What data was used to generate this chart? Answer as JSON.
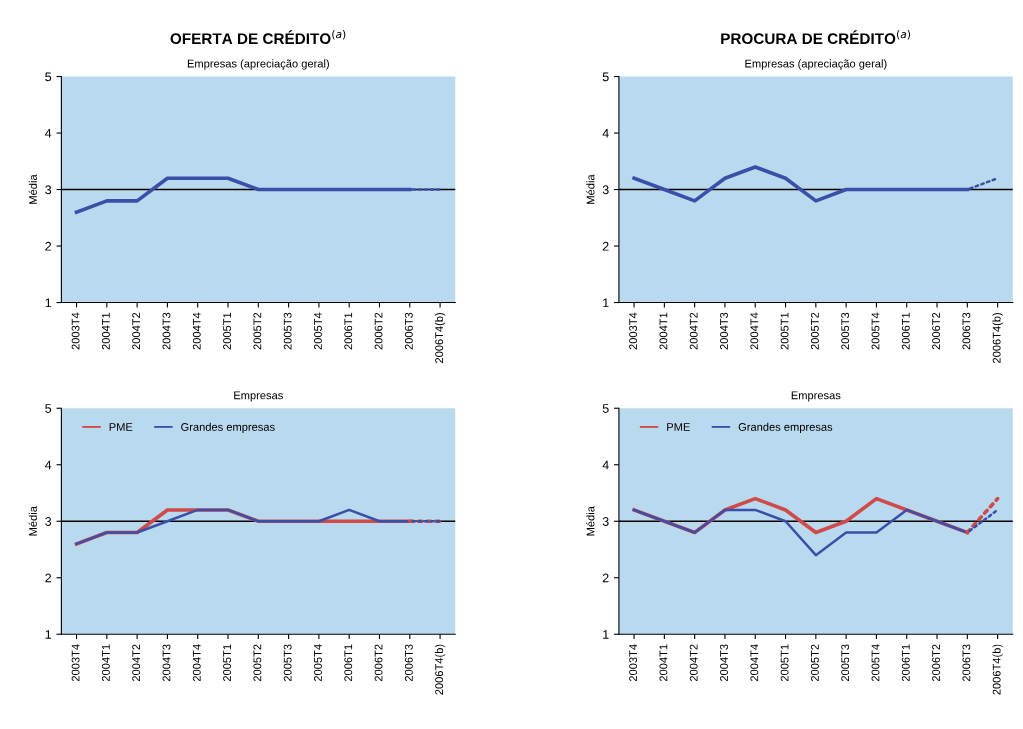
{
  "chart_data": [
    {
      "type": "line",
      "title": "OFERTA DE CRÉDITO$^{(a)}$",
      "subtitle": "Empresas (apreciação geral)",
      "ylabel": "Média",
      "categories": [
        "2003T4",
        "2004T1",
        "2004T2",
        "2004T3",
        "2004T4",
        "2005T1",
        "2005T2",
        "2005T3",
        "2005T4",
        "2006T1",
        "2006T2",
        "2006T3",
        "2006T4(b)"
      ],
      "series": [
        {
          "color": "#3b4fa8",
          "line_style": "solid",
          "values": [
            2.6,
            2.8,
            2.8,
            3.2,
            3.2,
            3.2,
            3.0,
            3.0,
            3.0,
            3.0,
            3.0,
            3.0,
            null
          ]
        },
        {
          "color": "#3b4fa8",
          "line_style": "dotted",
          "values": [
            null,
            null,
            null,
            null,
            null,
            null,
            null,
            null,
            null,
            null,
            null,
            3.0,
            3.0
          ]
        }
      ],
      "ylim": [
        1,
        5
      ],
      "yticks": [
        1,
        2,
        3,
        4,
        5
      ],
      "grid": false,
      "legend": false,
      "marker": "none",
      "ref_lines": [
        {
          "axis": "y",
          "value": 3,
          "color": "#000000"
        }
      ]
    },
    {
      "type": "line",
      "title": "PROCURA DE CRÉDITO$^{(a)}$",
      "subtitle": "Empresas (apreciação geral)",
      "ylabel": "Média",
      "categories": [
        "2003T4",
        "2004T1",
        "2004T2",
        "2004T3",
        "2004T4",
        "2005T1",
        "2005T2",
        "2005T3",
        "2005T4",
        "2006T1",
        "2006T2",
        "2006T3",
        "2006T4(b)"
      ],
      "series": [
        {
          "color": "#3b4fa8",
          "line_style": "solid",
          "values": [
            3.2,
            3.0,
            2.8,
            3.2,
            3.4,
            3.2,
            2.8,
            3.0,
            3.0,
            3.0,
            3.0,
            3.0,
            null
          ]
        },
        {
          "color": "#3b4fa8",
          "line_style": "dotted",
          "values": [
            null,
            null,
            null,
            null,
            null,
            null,
            null,
            null,
            null,
            null,
            null,
            3.0,
            3.2
          ]
        }
      ],
      "ylim": [
        1,
        5
      ],
      "yticks": [
        1,
        2,
        3,
        4,
        5
      ],
      "grid": false,
      "legend": false,
      "marker": "none",
      "ref_lines": [
        {
          "axis": "y",
          "value": 3,
          "color": "#000000"
        }
      ]
    },
    {
      "type": "line",
      "subtitle": "Empresas",
      "ylabel": "Média",
      "categories": [
        "2003T4",
        "2004T1",
        "2004T2",
        "2004T3",
        "2004T4",
        "2005T1",
        "2005T2",
        "2005T3",
        "2005T4",
        "2006T1",
        "2006T2",
        "2006T3",
        "2006T4(b)"
      ],
      "series": [
        {
          "name": "PME",
          "color": "#d04a4a",
          "line_style": "solid",
          "values": [
            2.6,
            2.8,
            2.8,
            3.2,
            3.2,
            3.2,
            3.0,
            3.0,
            3.0,
            3.0,
            3.0,
            3.0,
            null
          ]
        },
        {
          "name": "Grandes empresas",
          "color": "#3b4fa8",
          "line_style": "solid",
          "values": [
            2.6,
            2.8,
            2.8,
            3.0,
            3.2,
            3.2,
            3.0,
            3.0,
            3.0,
            3.2,
            3.0,
            3.0,
            null
          ]
        },
        {
          "color": "#d04a4a",
          "line_style": "dotted",
          "values": [
            null,
            null,
            null,
            null,
            null,
            null,
            null,
            null,
            null,
            null,
            null,
            3.0,
            3.0
          ]
        },
        {
          "color": "#3b4fa8",
          "line_style": "dotted",
          "values": [
            null,
            null,
            null,
            null,
            null,
            null,
            null,
            null,
            null,
            null,
            null,
            3.0,
            3.0
          ]
        }
      ],
      "ylim": [
        1,
        5
      ],
      "yticks": [
        1,
        2,
        3,
        4,
        5
      ],
      "grid": false,
      "legend": "top left",
      "marker": "none",
      "ref_lines": [
        {
          "axis": "y",
          "value": 3,
          "color": "#000000"
        }
      ]
    },
    {
      "type": "line",
      "subtitle": "Empresas",
      "ylabel": "Média",
      "categories": [
        "2003T4",
        "2004T1",
        "2004T2",
        "2004T3",
        "2004T4",
        "2005T1",
        "2005T2",
        "2005T3",
        "2005T4",
        "2006T1",
        "2006T2",
        "2006T3",
        "2006T4(b)"
      ],
      "series": [
        {
          "name": "PME",
          "color": "#d04a4a",
          "line_style": "solid",
          "values": [
            3.2,
            3.0,
            2.8,
            3.2,
            3.4,
            3.2,
            2.8,
            3.0,
            3.4,
            3.2,
            3.0,
            2.8,
            null
          ]
        },
        {
          "name": "Grandes empresas",
          "color": "#3b4fa8",
          "line_style": "solid",
          "values": [
            3.2,
            3.0,
            2.8,
            3.2,
            3.2,
            3.0,
            2.4,
            2.8,
            2.8,
            3.2,
            3.0,
            2.8,
            null
          ]
        },
        {
          "color": "#d04a4a",
          "line_style": "dotted",
          "values": [
            null,
            null,
            null,
            null,
            null,
            null,
            null,
            null,
            null,
            null,
            null,
            2.8,
            3.4
          ]
        },
        {
          "color": "#3b4fa8",
          "line_style": "dotted",
          "values": [
            null,
            null,
            null,
            null,
            null,
            null,
            null,
            null,
            null,
            null,
            null,
            2.8,
            3.2
          ]
        }
      ],
      "ylim": [
        1,
        5
      ],
      "yticks": [
        1,
        2,
        3,
        4,
        5
      ],
      "grid": false,
      "legend": "top left",
      "marker": "none",
      "ref_lines": [
        {
          "axis": "y",
          "value": 3,
          "color": "#000000"
        }
      ]
    }
  ]
}
